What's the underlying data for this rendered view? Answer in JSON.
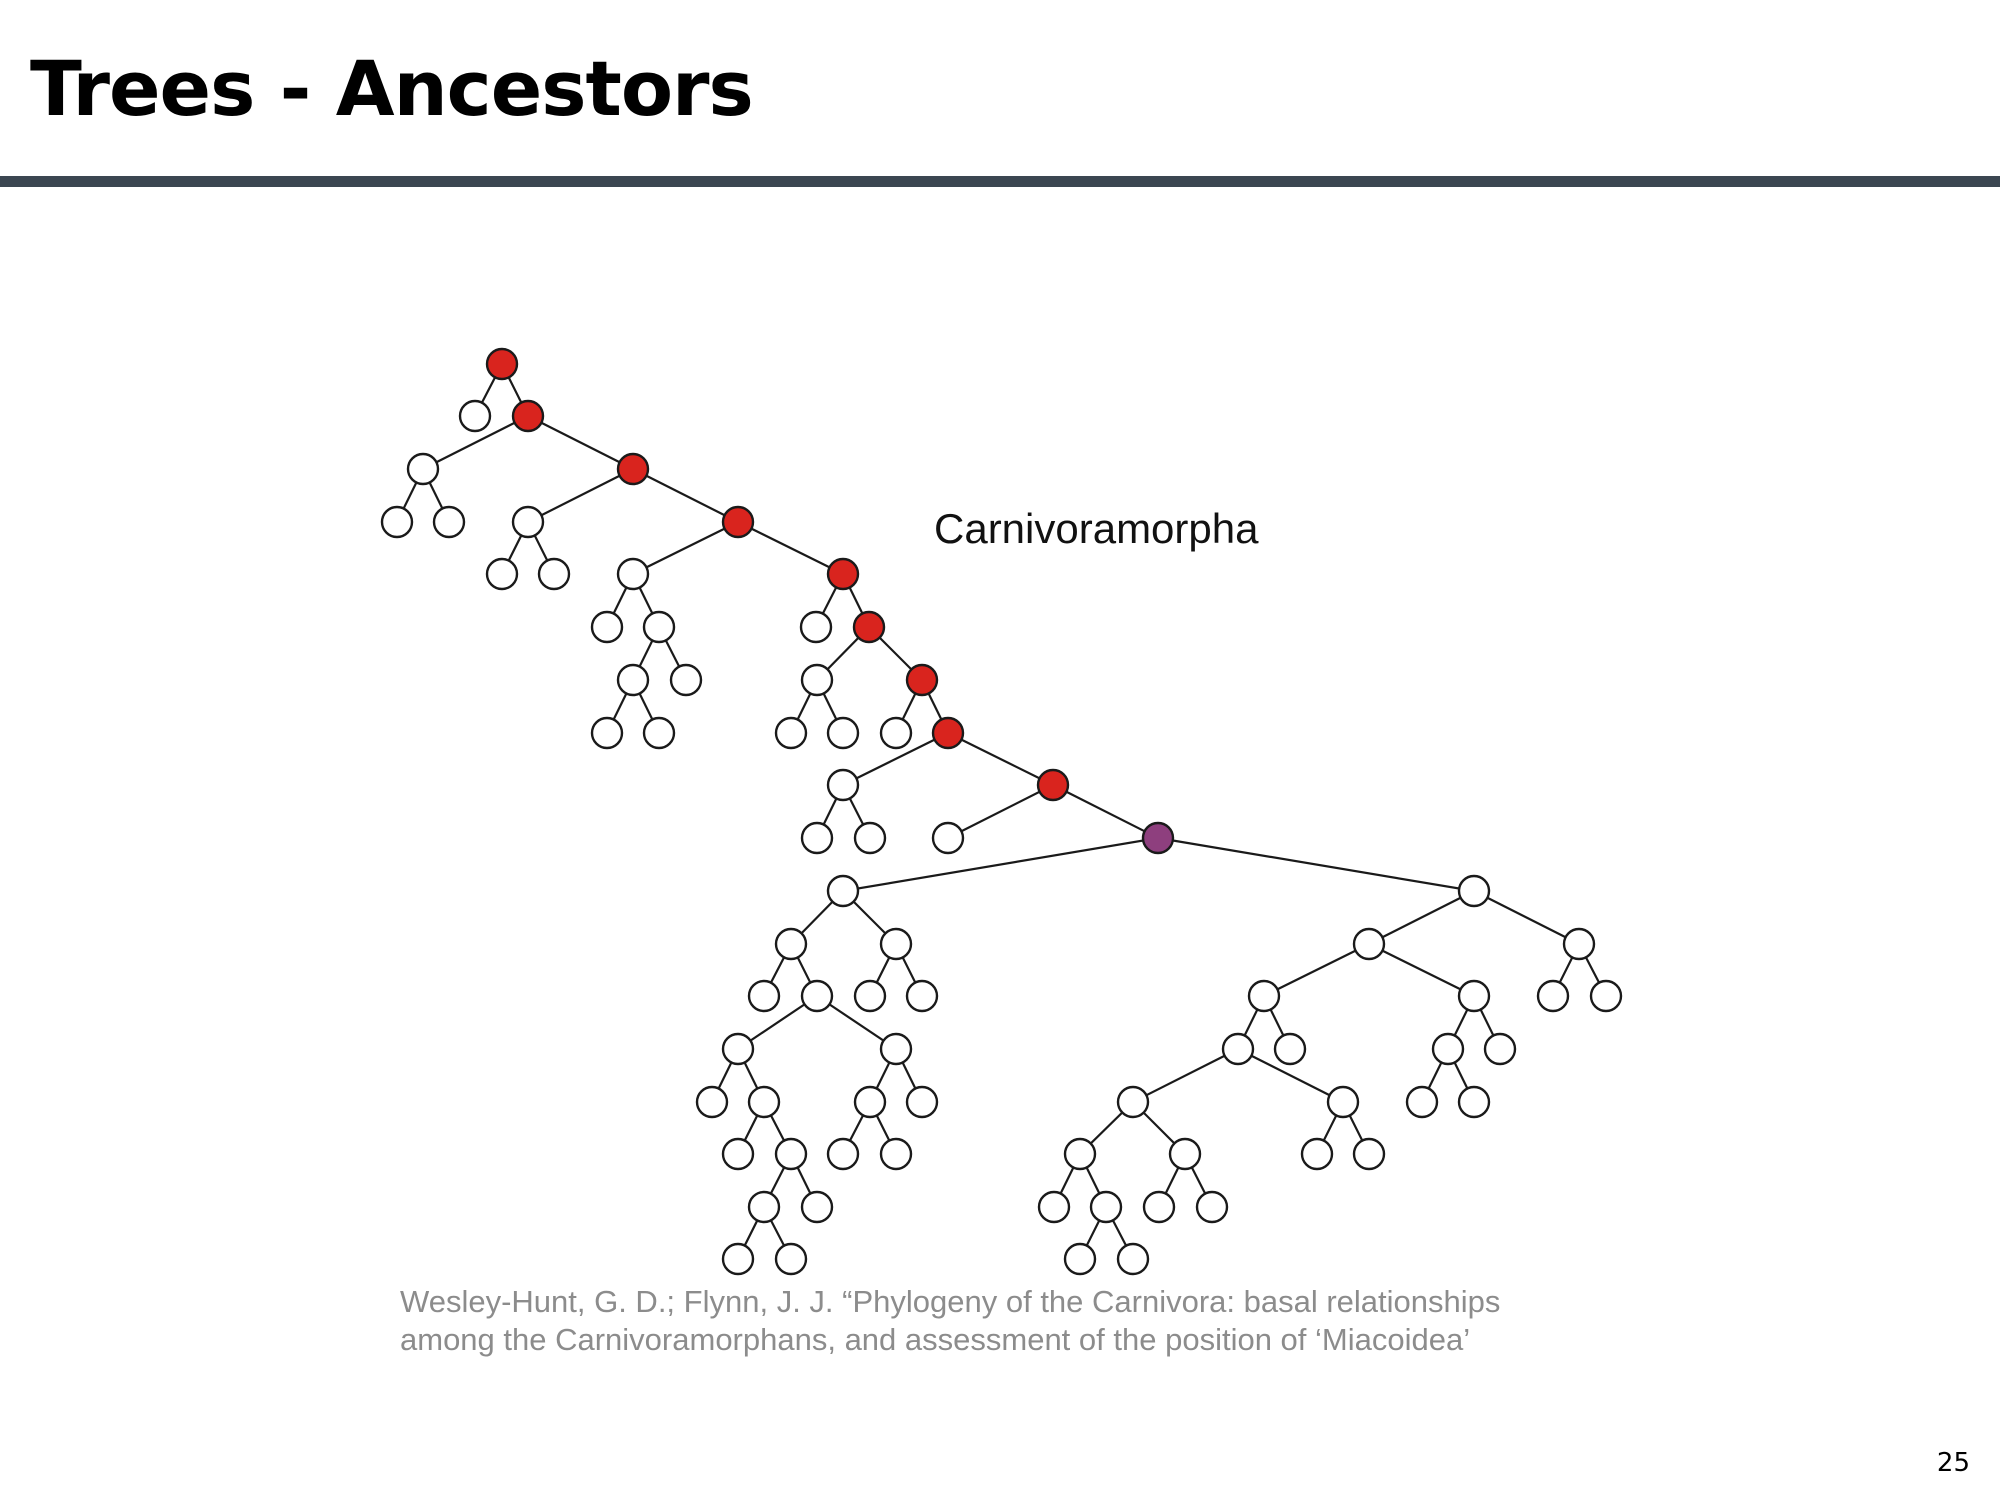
{
  "slide": {
    "title": "Trees - Ancestors",
    "page_number": "25"
  },
  "diagram": {
    "clade_label": "Carnivoramorpha",
    "node_colors": {
      "ancestor": "#d9241e",
      "crown_ancestor": "#8e3f7e",
      "taxon": "#ffffff"
    }
  },
  "citation": {
    "line1": "Wesley-Hunt, G. D.; Flynn, J. J. “Phylogeny of the Carnivora: basal relationships",
    "line2": "among the Carnivoramorphans, and assessment of the position of ‘Miacoidea’"
  }
}
